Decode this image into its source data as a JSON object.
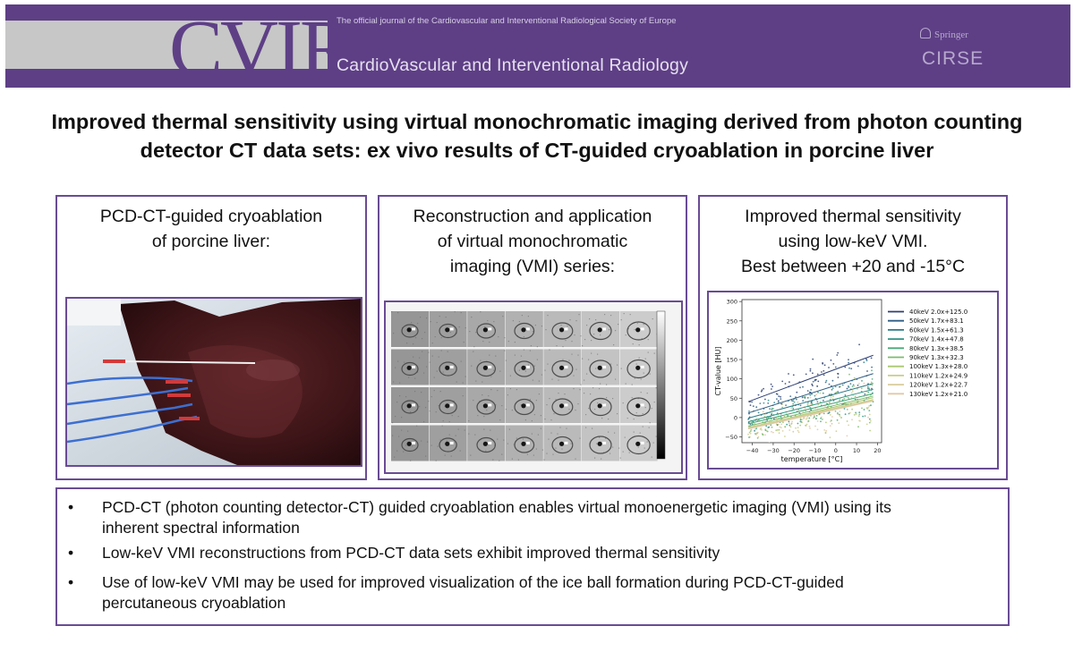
{
  "header": {
    "logo_text": "CVIR",
    "tagline": "The official journal of the  Cardiovascular and Interventional Radiological Society of Europe",
    "journal_name": "CardioVascular and Interventional Radiology",
    "publisher": "Springer",
    "society_logo": "CIRSE"
  },
  "title": "Improved thermal sensitivity using virtual monochromatic imaging derived from photon counting detector CT data sets: ex vivo results of CT-guided cryoablation in porcine liver",
  "panels": [
    {
      "lines": [
        "PCD-CT-guided cryoablation",
        "of porcine liver:"
      ]
    },
    {
      "lines": [
        "Reconstruction and application",
        "of virtual monochromatic",
        "imaging (VMI) series:"
      ]
    },
    {
      "lines": [
        "Improved thermal sensitivity",
        "using low-keV VMI.",
        "Best between +20 and -15°C"
      ]
    }
  ],
  "bullets": [
    {
      "lines": [
        "PCD-CT (photon counting detector-CT) guided cryoablation enables virtual monoenergetic imaging (VMI) using its",
        "inherent spectral information"
      ]
    },
    {
      "lines": [
        "Low-keV VMI reconstructions from PCD-CT data sets exhibit improved thermal sensitivity"
      ]
    },
    {
      "lines": [
        "Use of low-keV VMI may be used for improved visualization of the ice ball formation during PCD-CT-guided",
        "percutaneous cryoablation"
      ]
    }
  ],
  "bullet_glyph": "•",
  "chart_data": {
    "type": "scatter",
    "xlabel": "temperature [°C]",
    "ylabel": "CT-value [HU]",
    "xlim": [
      -45,
      22
    ],
    "ylim": [
      -65,
      305
    ],
    "x_ticks": [
      "−40",
      "−30",
      "−20",
      "−10",
      "0",
      "10",
      "20"
    ],
    "y_ticks": [
      "−50",
      "0",
      "50",
      "100",
      "150",
      "200",
      "250",
      "300"
    ],
    "legend_position": "right",
    "series": [
      {
        "name": "40keV  2.0x+125.0",
        "slope": 2.0,
        "intercept": 125.0,
        "color": "#2c3e73"
      },
      {
        "name": "50keV  1.7x+83.1",
        "slope": 1.7,
        "intercept": 83.1,
        "color": "#2f5d84"
      },
      {
        "name": "60keV  1.5x+61.3",
        "slope": 1.5,
        "intercept": 61.3,
        "color": "#2e7a8a"
      },
      {
        "name": "70keV  1.4x+47.8",
        "slope": 1.4,
        "intercept": 47.8,
        "color": "#2f9486"
      },
      {
        "name": "80keV  1.3x+38.5",
        "slope": 1.3,
        "intercept": 38.5,
        "color": "#4aa97a"
      },
      {
        "name": "90keV  1.3x+32.3",
        "slope": 1.3,
        "intercept": 32.3,
        "color": "#7cbb6c"
      },
      {
        "name": "100keV  1.3x+28.0",
        "slope": 1.3,
        "intercept": 28.0,
        "color": "#a9c86f"
      },
      {
        "name": "110keV  1.2x+24.9",
        "slope": 1.2,
        "intercept": 24.9,
        "color": "#c8cf86"
      },
      {
        "name": "120keV  1.2x+22.7",
        "slope": 1.2,
        "intercept": 22.7,
        "color": "#d9cc9c"
      },
      {
        "name": "130keV  1.2x+21.0",
        "slope": 1.2,
        "intercept": 21.0,
        "color": "#e3c7a8"
      }
    ]
  }
}
